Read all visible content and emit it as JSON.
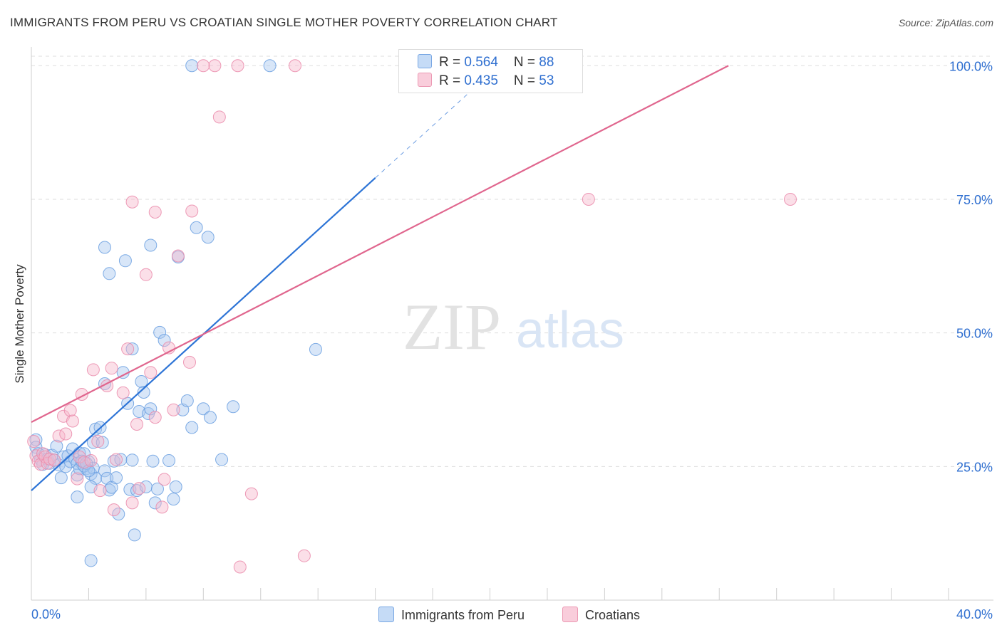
{
  "header": {
    "title": "IMMIGRANTS FROM PERU VS CROATIAN SINGLE MOTHER POVERTY CORRELATION CHART",
    "source": "Source: ZipAtlas.com"
  },
  "watermark": {
    "zip": "ZIP",
    "atlas": "atlas"
  },
  "legend": {
    "rows": [
      {
        "r_label": "R = ",
        "r_value": "0.564",
        "n_label": "N = ",
        "n_value": "88"
      },
      {
        "r_label": "R = ",
        "r_value": "0.435",
        "n_label": "N = ",
        "n_value": "53"
      }
    ]
  },
  "bottom_legend": [
    "Immigrants from Peru",
    "Croatians"
  ],
  "colors": {
    "blue_fill": "#a9c8f0",
    "blue_stroke": "#6a9fe0",
    "blue_line": "#2d74d6",
    "pink_fill": "#f6b8cb",
    "pink_stroke": "#ea8aaa",
    "pink_line": "#e0668e",
    "axis_label": "#2f6fd0",
    "grid": "#dddddd"
  },
  "chart_data": {
    "type": "scatter",
    "title": "IMMIGRANTS FROM PERU VS CROATIAN SINGLE MOTHER POVERTY CORRELATION CHART",
    "xlabel": "",
    "ylabel": "Single Mother Poverty",
    "xlim": [
      0,
      40
    ],
    "ylim": [
      0,
      102.3
    ],
    "x_tick_labels": [
      "0.0%",
      "40.0%"
    ],
    "y_ticks": [
      25,
      50,
      75,
      100
    ],
    "y_tick_labels": [
      "25.0%",
      "50.0%",
      "75.0%",
      "100.0%"
    ],
    "series": [
      {
        "name": "Immigrants from Peru",
        "r": 0.564,
        "n": 88,
        "trend": {
          "x0": 0,
          "y0": 20.5,
          "x1": 15.0,
          "y1": 79.0,
          "dash_x1": 19.0,
          "dash_y1": 94.6
        },
        "points": [
          [
            0.2,
            30.0
          ],
          [
            0.2,
            28.6
          ],
          [
            0.3,
            27.4
          ],
          [
            0.4,
            26.3
          ],
          [
            0.5,
            25.4
          ],
          [
            0.6,
            27.2
          ],
          [
            0.7,
            26.4
          ],
          [
            0.8,
            25.6
          ],
          [
            0.9,
            27.1
          ],
          [
            1.0,
            26.2
          ],
          [
            1.1,
            28.8
          ],
          [
            1.2,
            25.3
          ],
          [
            1.3,
            22.9
          ],
          [
            1.4,
            26.8
          ],
          [
            1.5,
            25.0
          ],
          [
            1.6,
            27.0
          ],
          [
            1.7,
            25.9
          ],
          [
            1.8,
            28.3
          ],
          [
            1.9,
            26.4
          ],
          [
            2.0,
            23.4
          ],
          [
            2.1,
            27.5
          ],
          [
            2.2,
            25.6
          ],
          [
            2.3,
            27.4
          ],
          [
            2.4,
            24.6
          ],
          [
            2.5,
            25.9
          ],
          [
            2.6,
            23.6
          ],
          [
            2.7,
            24.7
          ],
          [
            2.8,
            22.8
          ],
          [
            2.0,
            25.6
          ],
          [
            2.1,
            24.6
          ],
          [
            2.0,
            19.3
          ],
          [
            2.2,
            26.0
          ],
          [
            2.3,
            25.1
          ],
          [
            2.4,
            25.6
          ],
          [
            2.5,
            24.2
          ],
          [
            2.6,
            21.2
          ],
          [
            2.7,
            29.5
          ],
          [
            2.8,
            32.0
          ],
          [
            3.0,
            32.3
          ],
          [
            3.1,
            29.5
          ],
          [
            3.2,
            40.5
          ],
          [
            3.2,
            24.2
          ],
          [
            3.3,
            22.8
          ],
          [
            3.4,
            20.6
          ],
          [
            3.5,
            21.1
          ],
          [
            3.6,
            26.0
          ],
          [
            3.7,
            22.9
          ],
          [
            3.8,
            16.1
          ],
          [
            3.9,
            26.3
          ],
          [
            4.0,
            42.6
          ],
          [
            4.2,
            36.8
          ],
          [
            4.3,
            20.7
          ],
          [
            4.4,
            26.2
          ],
          [
            4.5,
            12.2
          ],
          [
            4.6,
            20.5
          ],
          [
            4.7,
            35.3
          ],
          [
            4.8,
            40.9
          ],
          [
            4.9,
            38.9
          ],
          [
            5.0,
            21.2
          ],
          [
            5.1,
            34.9
          ],
          [
            5.2,
            35.8
          ],
          [
            5.3,
            26.0
          ],
          [
            5.4,
            18.2
          ],
          [
            5.5,
            20.8
          ],
          [
            5.6,
            50.1
          ],
          [
            5.8,
            48.6
          ],
          [
            6.0,
            26.1
          ],
          [
            6.2,
            18.9
          ],
          [
            6.3,
            21.2
          ],
          [
            6.6,
            35.6
          ],
          [
            6.8,
            37.3
          ],
          [
            7.0,
            32.3
          ],
          [
            7.2,
            69.7
          ],
          [
            7.5,
            35.8
          ],
          [
            7.7,
            67.9
          ],
          [
            7.8,
            34.2
          ],
          [
            3.2,
            66.0
          ],
          [
            4.1,
            63.5
          ],
          [
            3.4,
            61.1
          ],
          [
            5.2,
            66.4
          ],
          [
            6.4,
            64.2
          ],
          [
            4.4,
            47.0
          ],
          [
            8.3,
            26.3
          ],
          [
            8.8,
            36.2
          ],
          [
            12.4,
            46.9
          ],
          [
            2.6,
            7.4
          ],
          [
            7.0,
            100.0
          ],
          [
            10.4,
            100.0
          ]
        ]
      },
      {
        "name": "Croatians",
        "r": 0.435,
        "n": 53,
        "trend": {
          "x0": 0,
          "y0": 33.3,
          "x1": 30.4,
          "y1": 100.0
        },
        "points": [
          [
            0.1,
            29.7
          ],
          [
            0.2,
            27.0
          ],
          [
            0.3,
            26.0
          ],
          [
            0.4,
            25.4
          ],
          [
            0.5,
            27.4
          ],
          [
            0.6,
            26.8
          ],
          [
            0.7,
            25.6
          ],
          [
            0.8,
            26.4
          ],
          [
            1.0,
            26.2
          ],
          [
            1.2,
            30.7
          ],
          [
            1.4,
            34.4
          ],
          [
            1.5,
            31.1
          ],
          [
            1.7,
            35.5
          ],
          [
            1.8,
            33.5
          ],
          [
            2.0,
            22.7
          ],
          [
            2.1,
            26.8
          ],
          [
            2.2,
            38.5
          ],
          [
            2.3,
            25.8
          ],
          [
            2.6,
            26.1
          ],
          [
            2.7,
            43.1
          ],
          [
            2.9,
            29.7
          ],
          [
            3.0,
            20.5
          ],
          [
            3.3,
            40.1
          ],
          [
            3.5,
            43.4
          ],
          [
            3.6,
            16.9
          ],
          [
            3.7,
            26.3
          ],
          [
            4.0,
            38.8
          ],
          [
            4.2,
            47.0
          ],
          [
            4.4,
            18.2
          ],
          [
            4.6,
            32.9
          ],
          [
            4.7,
            20.9
          ],
          [
            5.2,
            42.6
          ],
          [
            5.4,
            34.2
          ],
          [
            5.7,
            17.4
          ],
          [
            5.8,
            22.6
          ],
          [
            6.2,
            35.6
          ],
          [
            6.0,
            47.2
          ],
          [
            6.9,
            44.5
          ],
          [
            4.4,
            74.5
          ],
          [
            5.4,
            72.6
          ],
          [
            7.0,
            72.8
          ],
          [
            6.4,
            64.4
          ],
          [
            5.0,
            60.9
          ],
          [
            8.2,
            90.4
          ],
          [
            9.1,
            6.2
          ],
          [
            9.6,
            19.9
          ],
          [
            11.9,
            8.3
          ],
          [
            8.0,
            100.0
          ],
          [
            9.0,
            100.0
          ],
          [
            11.5,
            100.0
          ],
          [
            7.5,
            100.0
          ],
          [
            24.3,
            75.0
          ],
          [
            33.1,
            75.0
          ]
        ]
      }
    ]
  }
}
